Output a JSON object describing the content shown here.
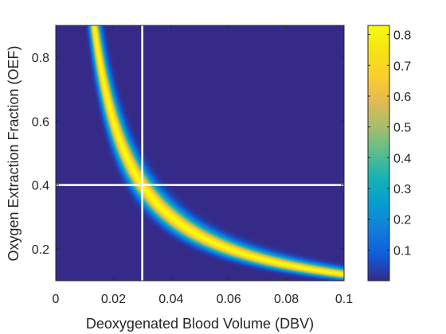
{
  "chart_data": {
    "type": "heatmap",
    "title": "",
    "xlabel": "Deoxygenated Blood Volume (DBV)",
    "ylabel": "Oxygen Extraction Fraction (OEF)",
    "xlim": [
      0,
      0.1
    ],
    "ylim": [
      0.1,
      0.9
    ],
    "x_ticks": [
      0,
      0.02,
      0.04,
      0.06,
      0.08,
      0.1
    ],
    "x_tick_labels": [
      "0",
      "0.02",
      "0.04",
      "0.06",
      "0.08",
      "0.1"
    ],
    "y_ticks": [
      0.2,
      0.4,
      0.6,
      0.8
    ],
    "y_tick_labels": [
      "0.2",
      "0.4",
      "0.6",
      "0.8"
    ],
    "colorbar": {
      "colormap": "parula",
      "range": [
        0,
        0.83
      ],
      "ticks": [
        0.1,
        0.2,
        0.3,
        0.4,
        0.5,
        0.6,
        0.7,
        0.8
      ],
      "tick_labels": [
        "0.1",
        "0.2",
        "0.3",
        "0.4",
        "0.5",
        "0.6",
        "0.7",
        "0.8"
      ]
    },
    "ridge": {
      "description": "hyperbolic ridge OEF * DBV = const",
      "product": 0.012,
      "peak_value": 0.83,
      "points": [
        [
          0.013,
          0.9
        ],
        [
          0.02,
          0.6
        ],
        [
          0.03,
          0.4
        ],
        [
          0.04,
          0.3
        ],
        [
          0.06,
          0.2
        ],
        [
          0.08,
          0.15
        ],
        [
          0.1,
          0.12
        ]
      ]
    },
    "crosshair": {
      "x": 0.03,
      "y": 0.4,
      "color": "#ffffff"
    },
    "background_value": 0
  }
}
